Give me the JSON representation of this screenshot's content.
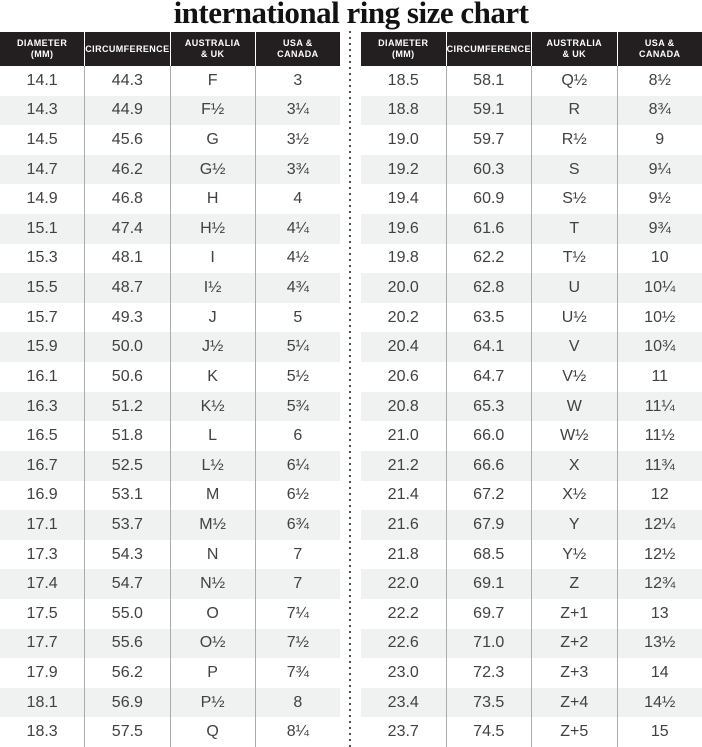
{
  "page": {
    "title": "international ring size chart"
  },
  "table": {
    "headers": [
      {
        "line1": "DIAMETER",
        "line2": "(mm)"
      },
      {
        "line1": "CIRCUMFERENCE",
        "line2": ""
      },
      {
        "line1": "AUSTRALIA",
        "line2": "& UK"
      },
      {
        "line1": "USA &",
        "line2": "CANADA"
      }
    ]
  },
  "colors": {
    "header_bg": "#231f20",
    "header_text": "#ffffff",
    "stripe": "#f0f2f1",
    "column_line": "#a9abae",
    "body_text": "#414042"
  },
  "chart_data": [
    {
      "type": "table",
      "title": "international ring size chart",
      "columns": [
        "DIAMETER (mm)",
        "CIRCUMFERENCE",
        "AUSTRALIA & UK",
        "USA & CANADA"
      ],
      "rows": [
        [
          "14.1",
          "44.3",
          "F",
          "3"
        ],
        [
          "14.3",
          "44.9",
          "F½",
          "3¼"
        ],
        [
          "14.5",
          "45.6",
          "G",
          "3½"
        ],
        [
          "14.7",
          "46.2",
          "G½",
          "3¾"
        ],
        [
          "14.9",
          "46.8",
          "H",
          "4"
        ],
        [
          "15.1",
          "47.4",
          "H½",
          "4¼"
        ],
        [
          "15.3",
          "48.1",
          "I",
          "4½"
        ],
        [
          "15.5",
          "48.7",
          "I½",
          "4¾"
        ],
        [
          "15.7",
          "49.3",
          "J",
          "5"
        ],
        [
          "15.9",
          "50.0",
          "J½",
          "5¼"
        ],
        [
          "16.1",
          "50.6",
          "K",
          "5½"
        ],
        [
          "16.3",
          "51.2",
          "K½",
          "5¾"
        ],
        [
          "16.5",
          "51.8",
          "L",
          "6"
        ],
        [
          "16.7",
          "52.5",
          "L½",
          "6¼"
        ],
        [
          "16.9",
          "53.1",
          "M",
          "6½"
        ],
        [
          "17.1",
          "53.7",
          "M½",
          "6¾"
        ],
        [
          "17.3",
          "54.3",
          "N",
          "7"
        ],
        [
          "17.4",
          "54.7",
          "N½",
          "7"
        ],
        [
          "17.5",
          "55.0",
          "O",
          "7¼"
        ],
        [
          "17.7",
          "55.6",
          "O½",
          "7½"
        ],
        [
          "17.9",
          "56.2",
          "P",
          "7¾"
        ],
        [
          "18.1",
          "56.9",
          "P½",
          "8"
        ],
        [
          "18.3",
          "57.5",
          "Q",
          "8¼"
        ]
      ]
    },
    {
      "type": "table",
      "title": "international ring size chart",
      "columns": [
        "DIAMETER (mm)",
        "CIRCUMFERENCE",
        "AUSTRALIA & UK",
        "USA & CANADA"
      ],
      "rows": [
        [
          "18.5",
          "58.1",
          "Q½",
          "8½"
        ],
        [
          "18.8",
          "59.1",
          "R",
          "8¾"
        ],
        [
          "19.0",
          "59.7",
          "R½",
          "9"
        ],
        [
          "19.2",
          "60.3",
          "S",
          "9¼"
        ],
        [
          "19.4",
          "60.9",
          "S½",
          "9½"
        ],
        [
          "19.6",
          "61.6",
          "T",
          "9¾"
        ],
        [
          "19.8",
          "62.2",
          "T½",
          "10"
        ],
        [
          "20.0",
          "62.8",
          "U",
          "10¼"
        ],
        [
          "20.2",
          "63.5",
          "U½",
          "10½"
        ],
        [
          "20.4",
          "64.1",
          "V",
          "10¾"
        ],
        [
          "20.6",
          "64.7",
          "V½",
          "11"
        ],
        [
          "20.8",
          "65.3",
          "W",
          "11¼"
        ],
        [
          "21.0",
          "66.0",
          "W½",
          "11½"
        ],
        [
          "21.2",
          "66.6",
          "X",
          "11¾"
        ],
        [
          "21.4",
          "67.2",
          "X½",
          "12"
        ],
        [
          "21.6",
          "67.9",
          "Y",
          "12¼"
        ],
        [
          "21.8",
          "68.5",
          "Y½",
          "12½"
        ],
        [
          "22.0",
          "69.1",
          "Z",
          "12¾"
        ],
        [
          "22.2",
          "69.7",
          "Z+1",
          "13"
        ],
        [
          "22.6",
          "71.0",
          "Z+2",
          "13½"
        ],
        [
          "23.0",
          "72.3",
          "Z+3",
          "14"
        ],
        [
          "23.4",
          "73.5",
          "Z+4",
          "14½"
        ],
        [
          "23.7",
          "74.5",
          "Z+5",
          "15"
        ]
      ]
    }
  ]
}
